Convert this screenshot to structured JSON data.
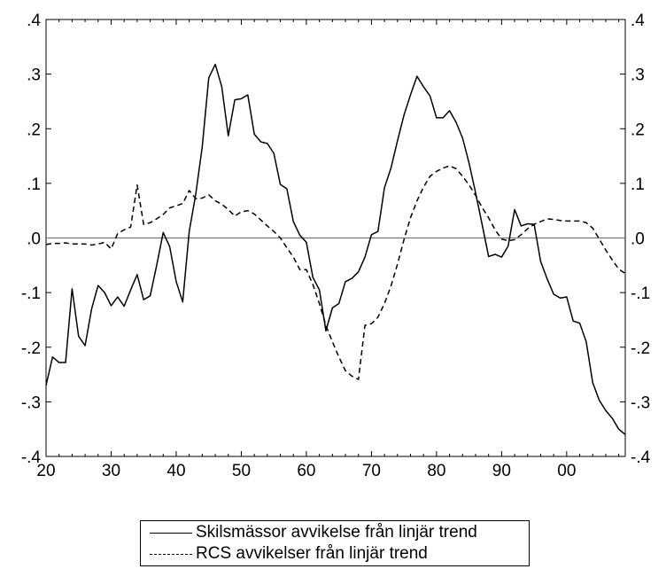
{
  "chart_data": {
    "type": "line",
    "xlim": [
      1920,
      2009
    ],
    "ylim": [
      -0.4,
      0.4
    ],
    "x_ticks": [
      1920,
      1930,
      1940,
      1950,
      1960,
      1970,
      1980,
      1990,
      2000
    ],
    "x_tick_labels": [
      "20",
      "30",
      "40",
      "50",
      "60",
      "70",
      "80",
      "90",
      "00"
    ],
    "y_ticks": [
      0.4,
      0.3,
      0.2,
      0.1,
      0.0,
      -0.1,
      -0.2,
      -0.3,
      -0.4
    ],
    "y_tick_labels": [
      ".4",
      ".3",
      ".2",
      ".1",
      ".0",
      "-.1",
      "-.2",
      "-.3",
      "-.4"
    ],
    "zero_line": true,
    "grid": false,
    "legend_position": "bottom",
    "series": [
      {
        "name": "Skilsmässor avvikelse från linjär trend",
        "style": "solid",
        "x": [
          1920,
          1921,
          1922,
          1923,
          1924,
          1925,
          1926,
          1927,
          1928,
          1929,
          1930,
          1931,
          1932,
          1933,
          1934,
          1935,
          1936,
          1937,
          1938,
          1939,
          1940,
          1941,
          1942,
          1943,
          1944,
          1945,
          1946,
          1947,
          1948,
          1949,
          1950,
          1951,
          1952,
          1953,
          1954,
          1955,
          1956,
          1957,
          1958,
          1959,
          1960,
          1961,
          1962,
          1963,
          1964,
          1965,
          1966,
          1967,
          1968,
          1969,
          1970,
          1971,
          1972,
          1973,
          1974,
          1975,
          1976,
          1977,
          1978,
          1979,
          1980,
          1981,
          1982,
          1983,
          1984,
          1985,
          1986,
          1987,
          1988,
          1989,
          1990,
          1991,
          1992,
          1993,
          1994,
          1995,
          1996,
          1997,
          1998,
          1999,
          2000,
          2001,
          2002,
          2003,
          2004,
          2005,
          2006,
          2007,
          2008,
          2009
        ],
        "values": [
          -0.27,
          -0.218,
          -0.228,
          -0.228,
          -0.093,
          -0.18,
          -0.197,
          -0.13,
          -0.087,
          -0.1,
          -0.124,
          -0.108,
          -0.125,
          -0.095,
          -0.067,
          -0.113,
          -0.106,
          -0.05,
          0.01,
          -0.016,
          -0.08,
          -0.117,
          0.012,
          0.08,
          0.167,
          0.293,
          0.318,
          0.277,
          0.187,
          0.253,
          0.255,
          0.262,
          0.19,
          0.176,
          0.173,
          0.155,
          0.098,
          0.09,
          0.03,
          0.005,
          -0.008,
          -0.072,
          -0.095,
          -0.17,
          -0.128,
          -0.12,
          -0.08,
          -0.074,
          -0.062,
          -0.035,
          0.006,
          0.012,
          0.092,
          0.128,
          0.178,
          0.225,
          0.262,
          0.296,
          0.277,
          0.26,
          0.22,
          0.22,
          0.233,
          0.212,
          0.183,
          0.137,
          0.083,
          0.025,
          -0.034,
          -0.03,
          -0.035,
          -0.015,
          0.052,
          0.022,
          0.026,
          0.025,
          -0.043,
          -0.075,
          -0.103,
          -0.11,
          -0.108,
          -0.152,
          -0.156,
          -0.19,
          -0.265,
          -0.297,
          -0.316,
          -0.33,
          -0.35,
          -0.36
        ]
      },
      {
        "name": "RCS avvikelser från linjär trend",
        "style": "dashed",
        "x": [
          1920,
          1921,
          1922,
          1923,
          1924,
          1925,
          1926,
          1927,
          1928,
          1929,
          1930,
          1931,
          1932,
          1933,
          1934,
          1935,
          1936,
          1937,
          1938,
          1939,
          1940,
          1941,
          1942,
          1943,
          1944,
          1945,
          1946,
          1947,
          1948,
          1949,
          1950,
          1951,
          1952,
          1953,
          1954,
          1955,
          1956,
          1957,
          1958,
          1959,
          1960,
          1961,
          1962,
          1963,
          1964,
          1965,
          1966,
          1967,
          1968,
          1969,
          1970,
          1971,
          1972,
          1973,
          1974,
          1975,
          1976,
          1977,
          1978,
          1979,
          1980,
          1981,
          1982,
          1983,
          1984,
          1985,
          1986,
          1987,
          1988,
          1989,
          1990,
          1991,
          1992,
          1993,
          1994,
          1995,
          1996,
          1997,
          1998,
          1999,
          2000,
          2001,
          2002,
          2003,
          2004,
          2005,
          2006,
          2007,
          2008,
          2009
        ],
        "values": [
          -0.012,
          -0.01,
          -0.01,
          -0.009,
          -0.011,
          -0.011,
          -0.011,
          -0.013,
          -0.011,
          -0.008,
          -0.02,
          0.008,
          0.015,
          0.02,
          0.097,
          0.025,
          0.028,
          0.035,
          0.043,
          0.055,
          0.059,
          0.063,
          0.087,
          0.072,
          0.073,
          0.079,
          0.068,
          0.062,
          0.052,
          0.04,
          0.048,
          0.05,
          0.044,
          0.033,
          0.022,
          0.012,
          0.0,
          -0.018,
          -0.035,
          -0.058,
          -0.058,
          -0.085,
          -0.12,
          -0.16,
          -0.19,
          -0.218,
          -0.243,
          -0.253,
          -0.259,
          -0.16,
          -0.157,
          -0.145,
          -0.12,
          -0.088,
          -0.048,
          -0.003,
          0.037,
          0.068,
          0.093,
          0.113,
          0.122,
          0.128,
          0.132,
          0.127,
          0.113,
          0.097,
          0.078,
          0.056,
          0.037,
          0.015,
          -0.002,
          -0.005,
          -0.003,
          0.006,
          0.017,
          0.025,
          0.03,
          0.035,
          0.034,
          0.032,
          0.031,
          0.031,
          0.031,
          0.028,
          0.018,
          -0.002,
          -0.022,
          -0.04,
          -0.057,
          -0.065
        ]
      }
    ]
  }
}
